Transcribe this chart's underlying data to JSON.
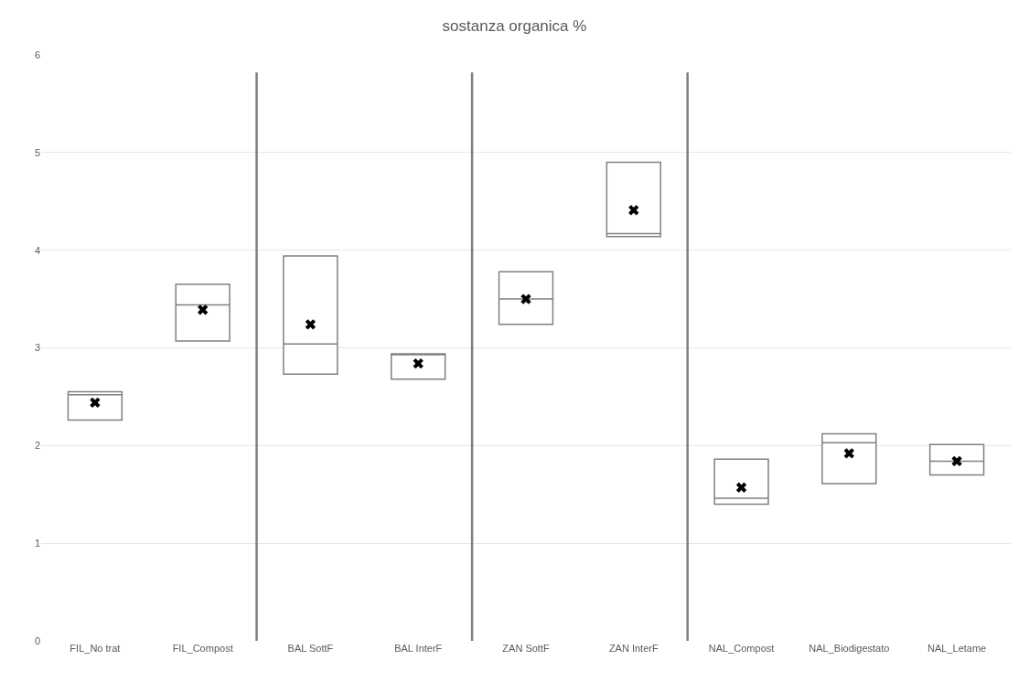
{
  "chart_data": {
    "type": "box",
    "title": "sostanza organica %",
    "categories": [
      "FIL_No trat",
      "FIL_Compost",
      "BAL SottF",
      "BAL InterF",
      "ZAN SottF",
      "ZAN InterF",
      "NAL_Compost",
      "NAL_Biodigestato",
      "NAL_Letame"
    ],
    "boxes": [
      {
        "low": 2.26,
        "q1": 2.26,
        "median": 2.52,
        "q3": 2.55,
        "high": 2.55,
        "mean": 2.44
      },
      {
        "low": 3.07,
        "q1": 3.07,
        "median": 3.44,
        "q3": 3.65,
        "high": 3.65,
        "mean": 3.39
      },
      {
        "low": 2.73,
        "q1": 2.73,
        "median": 3.04,
        "q3": 3.94,
        "high": 3.94,
        "mean": 3.24
      },
      {
        "low": 2.68,
        "q1": 2.68,
        "median": 2.93,
        "q3": 2.94,
        "high": 2.94,
        "mean": 2.84
      },
      {
        "low": 3.24,
        "q1": 3.24,
        "median": 3.5,
        "q3": 3.78,
        "high": 3.78,
        "mean": 3.5
      },
      {
        "low": 4.14,
        "q1": 4.14,
        "median": 4.17,
        "q3": 4.9,
        "high": 4.9,
        "mean": 4.41
      },
      {
        "low": 1.4,
        "q1": 1.4,
        "median": 1.46,
        "q3": 1.86,
        "high": 1.86,
        "mean": 1.57
      },
      {
        "low": 1.61,
        "q1": 1.61,
        "median": 2.03,
        "q3": 2.12,
        "high": 2.12,
        "mean": 1.92
      },
      {
        "low": 1.7,
        "q1": 1.7,
        "median": 1.84,
        "q3": 2.01,
        "high": 2.01,
        "mean": 1.84
      }
    ],
    "color": "#808080",
    "ylim": [
      0,
      6
    ],
    "yticks": [
      0,
      1,
      2,
      3,
      4,
      5,
      6
    ],
    "grid": "y",
    "marker": "cross"
  }
}
